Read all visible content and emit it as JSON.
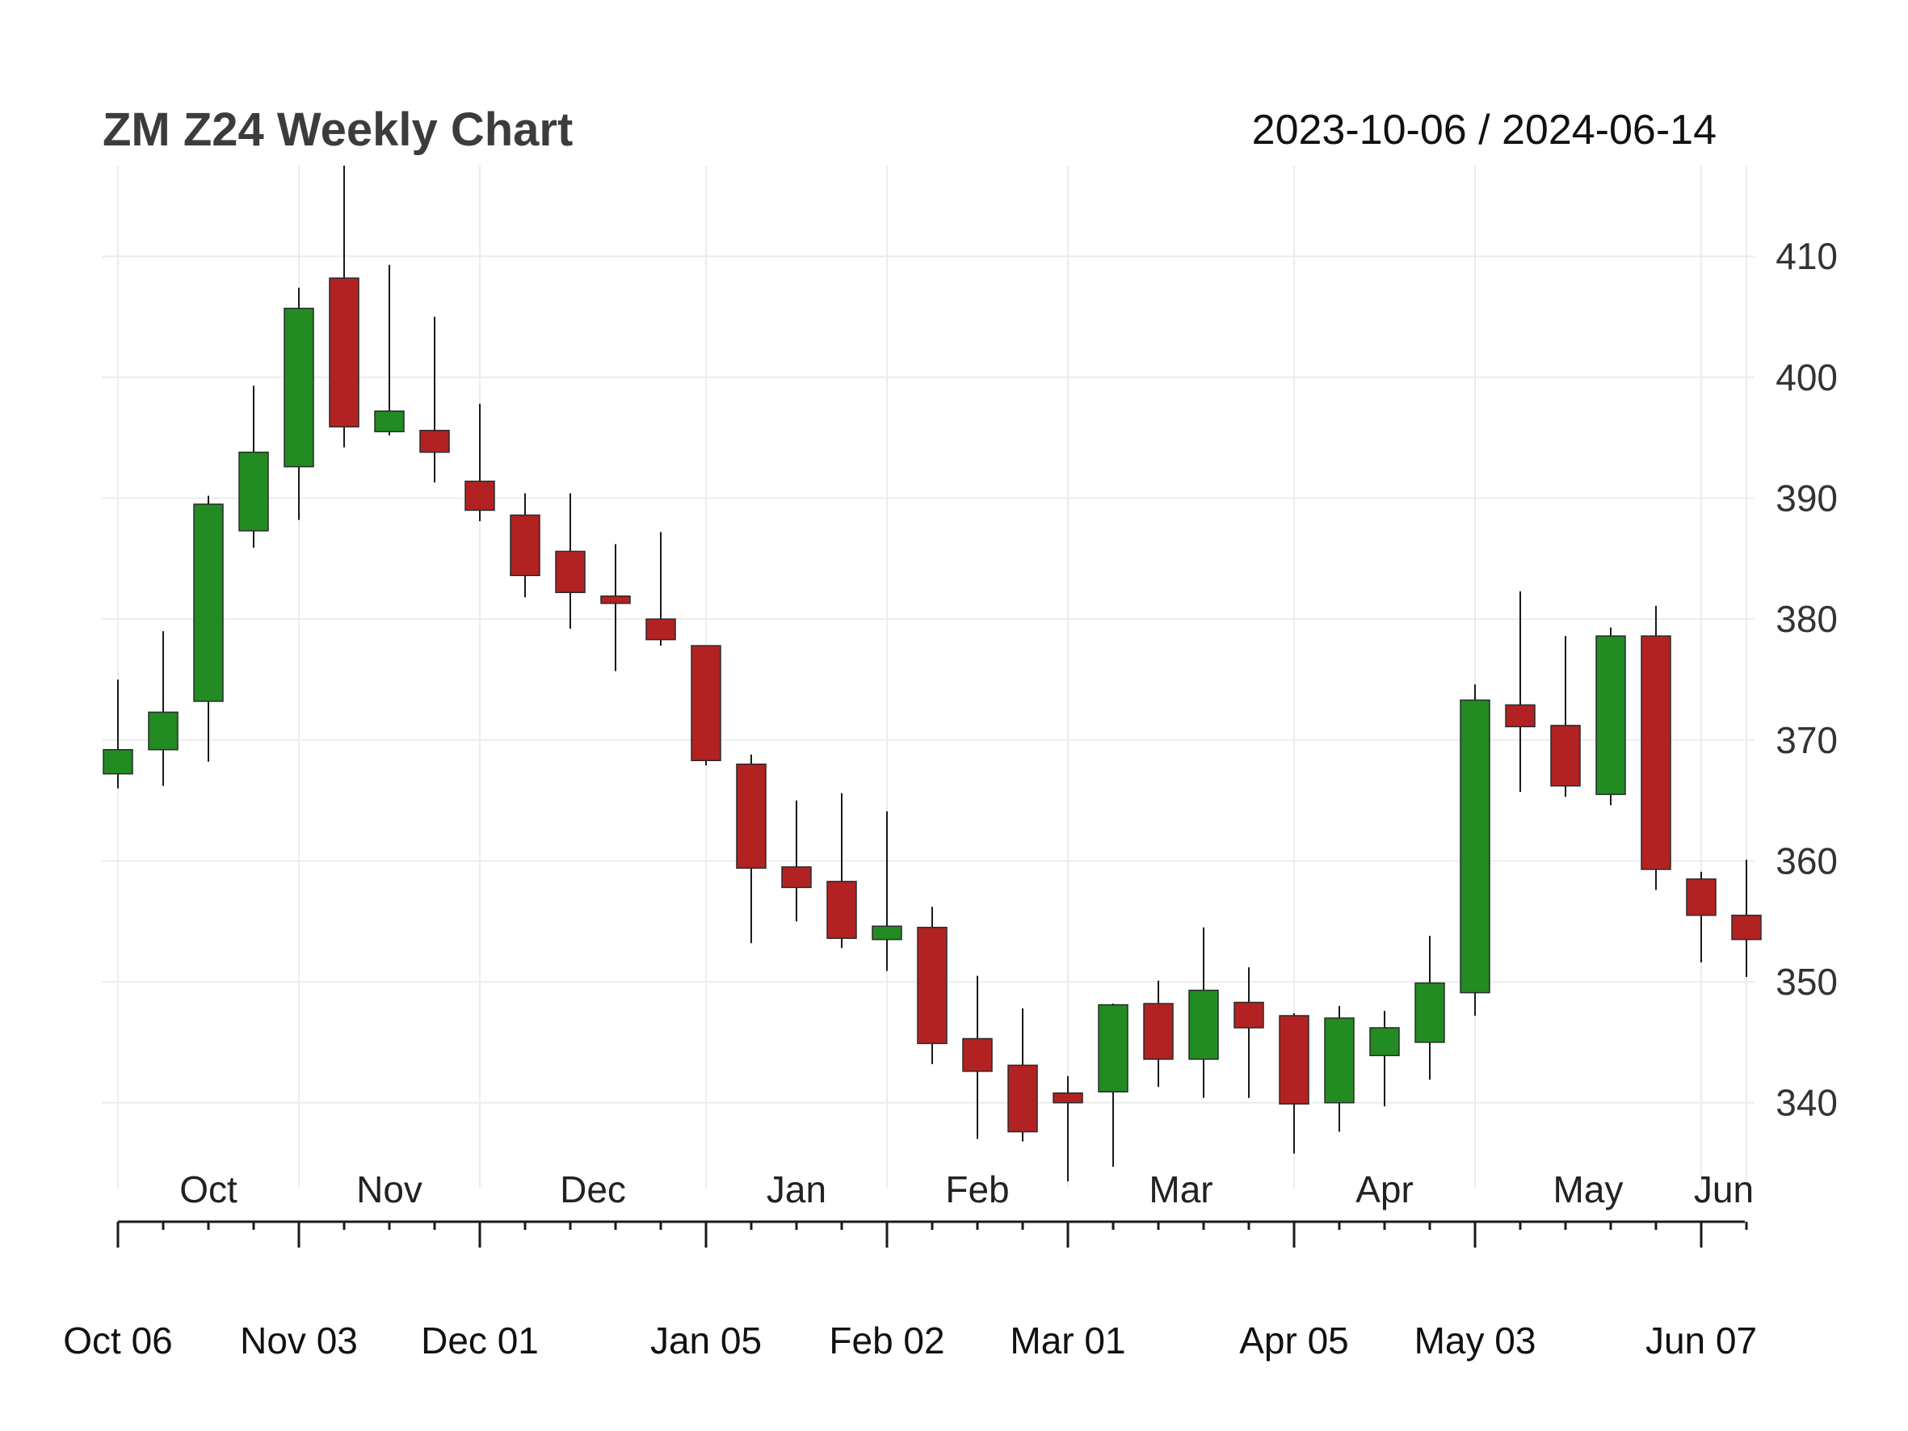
{
  "chart_data": {
    "type": "candlestick",
    "title": "ZM Z24 Weekly Chart",
    "date_range": "2023-10-06 / 2024-06-14",
    "ylim": [
      333.5,
      417.5
    ],
    "yticks": [
      340,
      350,
      360,
      370,
      380,
      390,
      400,
      410
    ],
    "colors": {
      "up": "#228b22",
      "down": "#b22222"
    },
    "candles": [
      {
        "date": "2023-10-06",
        "open": 367.2,
        "high": 375.0,
        "low": 366.0,
        "close": 369.2
      },
      {
        "date": "2023-10-13",
        "open": 369.2,
        "high": 379.0,
        "low": 366.2,
        "close": 372.3
      },
      {
        "date": "2023-10-20",
        "open": 373.2,
        "high": 390.2,
        "low": 368.2,
        "close": 389.5
      },
      {
        "date": "2023-10-27",
        "open": 387.3,
        "high": 399.3,
        "low": 385.9,
        "close": 393.8
      },
      {
        "date": "2023-11-03",
        "open": 392.6,
        "high": 407.4,
        "low": 388.2,
        "close": 405.7
      },
      {
        "date": "2023-11-10",
        "open": 408.2,
        "high": 417.5,
        "low": 394.2,
        "close": 395.9
      },
      {
        "date": "2023-11-17",
        "open": 395.5,
        "high": 409.3,
        "low": 395.2,
        "close": 397.2
      },
      {
        "date": "2023-11-24",
        "open": 395.6,
        "high": 405.0,
        "low": 391.3,
        "close": 393.8
      },
      {
        "date": "2023-12-01",
        "open": 391.4,
        "high": 397.8,
        "low": 388.1,
        "close": 389.0
      },
      {
        "date": "2023-12-08",
        "open": 388.6,
        "high": 390.4,
        "low": 381.8,
        "close": 383.6
      },
      {
        "date": "2023-12-15",
        "open": 385.6,
        "high": 390.4,
        "low": 379.2,
        "close": 382.2
      },
      {
        "date": "2023-12-22",
        "open": 381.9,
        "high": 386.2,
        "low": 375.7,
        "close": 381.3
      },
      {
        "date": "2023-12-29",
        "open": 380.0,
        "high": 387.2,
        "low": 377.8,
        "close": 378.3
      },
      {
        "date": "2024-01-05",
        "open": 377.8,
        "high": 377.8,
        "low": 367.9,
        "close": 368.3
      },
      {
        "date": "2024-01-12",
        "open": 368.0,
        "high": 368.8,
        "low": 353.2,
        "close": 359.4
      },
      {
        "date": "2024-01-19",
        "open": 359.5,
        "high": 365.0,
        "low": 355.0,
        "close": 357.8
      },
      {
        "date": "2024-01-26",
        "open": 358.3,
        "high": 365.6,
        "low": 352.8,
        "close": 353.6
      },
      {
        "date": "2024-02-02",
        "open": 353.5,
        "high": 364.1,
        "low": 350.9,
        "close": 354.6
      },
      {
        "date": "2024-02-09",
        "open": 354.5,
        "high": 356.2,
        "low": 343.2,
        "close": 344.9
      },
      {
        "date": "2024-02-16",
        "open": 345.3,
        "high": 350.5,
        "low": 337.0,
        "close": 342.6
      },
      {
        "date": "2024-02-23",
        "open": 343.1,
        "high": 347.8,
        "low": 336.8,
        "close": 337.6
      },
      {
        "date": "2024-03-01",
        "open": 340.8,
        "high": 342.2,
        "low": 333.5,
        "close": 340.0
      },
      {
        "date": "2024-03-08",
        "open": 340.9,
        "high": 348.2,
        "low": 334.7,
        "close": 348.1
      },
      {
        "date": "2024-03-15",
        "open": 348.2,
        "high": 350.1,
        "low": 341.3,
        "close": 343.6
      },
      {
        "date": "2024-03-22",
        "open": 343.6,
        "high": 354.5,
        "low": 340.4,
        "close": 349.3
      },
      {
        "date": "2024-03-29",
        "open": 348.3,
        "high": 351.2,
        "low": 340.4,
        "close": 346.2
      },
      {
        "date": "2024-04-05",
        "open": 347.2,
        "high": 347.4,
        "low": 335.8,
        "close": 339.9
      },
      {
        "date": "2024-04-12",
        "open": 340.0,
        "high": 348.0,
        "low": 337.6,
        "close": 347.0
      },
      {
        "date": "2024-04-19",
        "open": 343.9,
        "high": 347.6,
        "low": 339.7,
        "close": 346.2
      },
      {
        "date": "2024-04-26",
        "open": 345.0,
        "high": 353.8,
        "low": 341.9,
        "close": 349.9
      },
      {
        "date": "2024-05-03",
        "open": 349.1,
        "high": 374.6,
        "low": 347.2,
        "close": 373.3
      },
      {
        "date": "2024-05-10",
        "open": 372.9,
        "high": 382.3,
        "low": 365.7,
        "close": 371.1
      },
      {
        "date": "2024-05-17",
        "open": 371.2,
        "high": 378.6,
        "low": 365.3,
        "close": 366.2
      },
      {
        "date": "2024-05-24",
        "open": 365.5,
        "high": 379.3,
        "low": 364.6,
        "close": 378.6
      },
      {
        "date": "2024-05-31",
        "open": 378.6,
        "high": 381.1,
        "low": 357.6,
        "close": 359.3
      },
      {
        "date": "2024-06-07",
        "open": 358.5,
        "high": 359.1,
        "low": 351.6,
        "close": 355.5
      },
      {
        "date": "2024-06-14",
        "open": 355.5,
        "high": 360.1,
        "low": 350.4,
        "close": 353.5
      }
    ],
    "month_labels": [
      {
        "label": "Oct",
        "index": 2
      },
      {
        "label": "Nov",
        "index": 6
      },
      {
        "label": "Dec",
        "index": 10.5
      },
      {
        "label": "Jan",
        "index": 15
      },
      {
        "label": "Feb",
        "index": 19
      },
      {
        "label": "Mar",
        "index": 23.5
      },
      {
        "label": "Apr",
        "index": 28
      },
      {
        "label": "May",
        "index": 32.5
      },
      {
        "label": "Jun",
        "index": 35.5
      }
    ],
    "date_labels": [
      {
        "label": "Oct 06",
        "index": 0
      },
      {
        "label": "Nov 03",
        "index": 4
      },
      {
        "label": "Dec 01",
        "index": 8
      },
      {
        "label": "Jan 05",
        "index": 13
      },
      {
        "label": "Feb 02",
        "index": 17
      },
      {
        "label": "Mar 01",
        "index": 21
      },
      {
        "label": "Apr 05",
        "index": 26
      },
      {
        "label": "May 03",
        "index": 30
      },
      {
        "label": "Jun 07",
        "index": 35
      }
    ]
  }
}
